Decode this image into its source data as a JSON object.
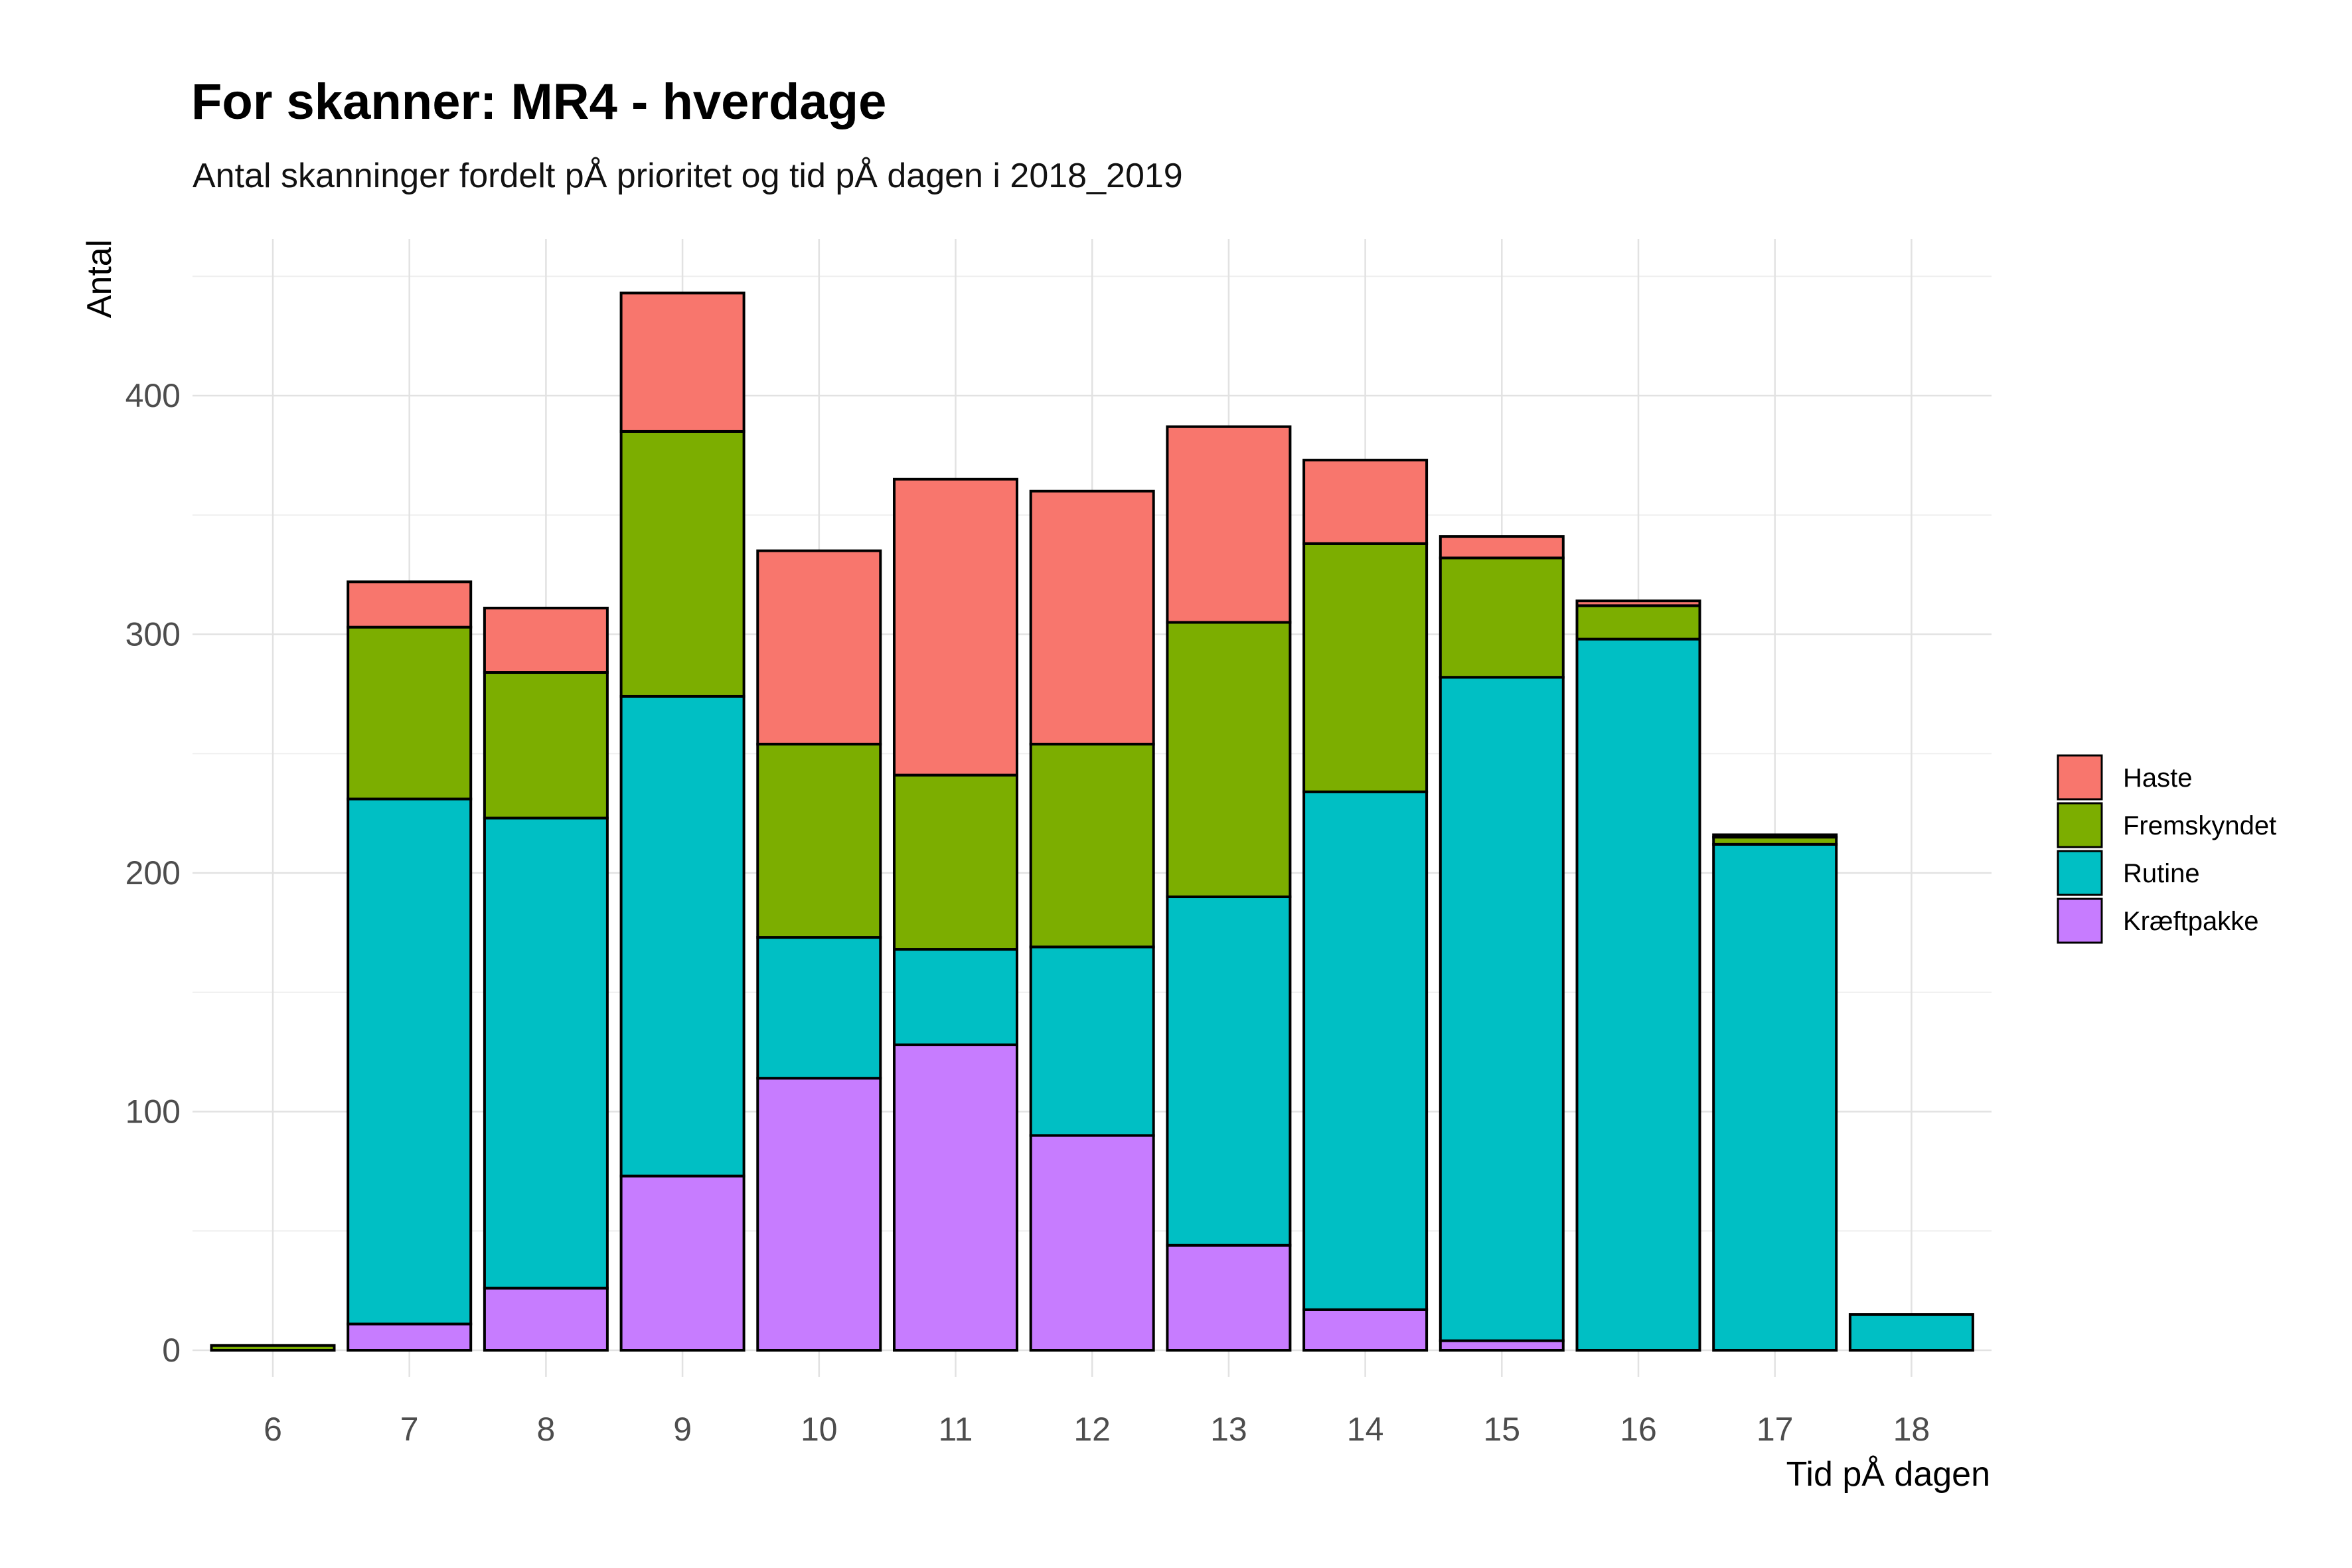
{
  "chart_data": {
    "type": "bar",
    "stacked": true,
    "title": "For skanner: MR4 - hverdage",
    "subtitle": "Antal skanninger fordelt pÅ prioritet og tid pÅ dagen i 2018_2019",
    "xlabel": "Tid pÅ dagen",
    "ylabel": "Antal",
    "categories": [
      "6",
      "7",
      "8",
      "9",
      "10",
      "11",
      "12",
      "13",
      "14",
      "15",
      "16",
      "17",
      "18"
    ],
    "ylim": [
      0,
      450
    ],
    "yticks": [
      0,
      100,
      200,
      300,
      400
    ],
    "grid": true,
    "legend_position": "right",
    "series": [
      {
        "name": "Kræftpakke",
        "color": "#C77CFF",
        "values": [
          0,
          11,
          26,
          73,
          114,
          128,
          90,
          44,
          17,
          4,
          0,
          0,
          0
        ]
      },
      {
        "name": "Rutine",
        "color": "#00BFC4",
        "values": [
          0,
          220,
          197,
          201,
          59,
          40,
          79,
          146,
          217,
          278,
          298,
          212,
          15
        ]
      },
      {
        "name": "Fremskyndet",
        "color": "#7CAE00",
        "values": [
          2,
          72,
          61,
          111,
          81,
          73,
          85,
          115,
          104,
          50,
          14,
          3,
          0
        ]
      },
      {
        "name": "Haste",
        "color": "#F8766D",
        "values": [
          0,
          19,
          27,
          58,
          81,
          124,
          106,
          82,
          35,
          9,
          2,
          1,
          0
        ]
      }
    ],
    "legend_order": [
      "Haste",
      "Fremskyndet",
      "Rutine",
      "Kræftpakke"
    ]
  }
}
